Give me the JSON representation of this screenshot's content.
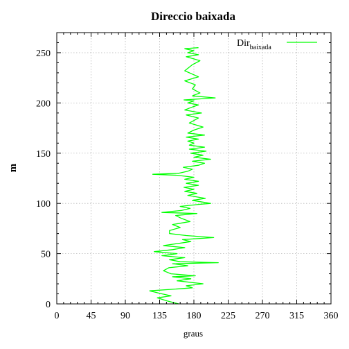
{
  "chart_data": {
    "type": "line",
    "title": "Direccio baixada",
    "xlabel": "graus",
    "ylabel": "m",
    "xlim": [
      0,
      360
    ],
    "ylim": [
      0,
      270
    ],
    "xticks": [
      0,
      45,
      90,
      135,
      180,
      225,
      270,
      315,
      360
    ],
    "yticks": [
      0,
      50,
      100,
      150,
      200,
      250
    ],
    "grid": true,
    "legend_position": "top-right",
    "series": [
      {
        "name": "Dir",
        "name_subscript": "baixada",
        "color": "#00ff00",
        "points": [
          [
            160,
            0
          ],
          [
            145,
            3
          ],
          [
            132,
            6
          ],
          [
            150,
            8
          ],
          [
            138,
            10
          ],
          [
            122,
            13
          ],
          [
            160,
            15
          ],
          [
            178,
            16
          ],
          [
            170,
            18
          ],
          [
            192,
            20
          ],
          [
            158,
            23
          ],
          [
            176,
            25
          ],
          [
            152,
            27
          ],
          [
            182,
            28
          ],
          [
            150,
            30
          ],
          [
            140,
            33
          ],
          [
            147,
            36
          ],
          [
            172,
            38
          ],
          [
            152,
            40
          ],
          [
            212,
            41
          ],
          [
            162,
            42
          ],
          [
            148,
            44
          ],
          [
            168,
            46
          ],
          [
            138,
            48
          ],
          [
            158,
            50
          ],
          [
            128,
            52
          ],
          [
            152,
            54
          ],
          [
            168,
            56
          ],
          [
            140,
            58
          ],
          [
            158,
            60
          ],
          [
            176,
            62
          ],
          [
            165,
            64
          ],
          [
            206,
            66
          ],
          [
            170,
            68
          ],
          [
            148,
            70
          ],
          [
            148,
            73
          ],
          [
            162,
            76
          ],
          [
            152,
            79
          ],
          [
            175,
            82
          ],
          [
            164,
            85
          ],
          [
            156,
            88
          ],
          [
            184,
            90
          ],
          [
            138,
            91
          ],
          [
            164,
            93
          ],
          [
            175,
            95
          ],
          [
            162,
            97
          ],
          [
            186,
            99
          ],
          [
            202,
            100
          ],
          [
            178,
            103
          ],
          [
            195,
            105
          ],
          [
            172,
            108
          ],
          [
            184,
            110
          ],
          [
            168,
            112
          ],
          [
            180,
            114
          ],
          [
            167,
            116
          ],
          [
            186,
            118
          ],
          [
            170,
            120
          ],
          [
            186,
            122
          ],
          [
            168,
            124
          ],
          [
            180,
            126
          ],
          [
            158,
            128
          ],
          [
            126,
            129
          ],
          [
            160,
            130
          ],
          [
            172,
            132
          ],
          [
            178,
            134
          ],
          [
            166,
            136
          ],
          [
            186,
            138
          ],
          [
            194,
            140
          ],
          [
            178,
            142
          ],
          [
            202,
            144
          ],
          [
            180,
            146
          ],
          [
            192,
            148
          ],
          [
            176,
            150
          ],
          [
            196,
            152
          ],
          [
            174,
            154
          ],
          [
            194,
            156
          ],
          [
            174,
            158
          ],
          [
            180,
            160
          ],
          [
            172,
            162
          ],
          [
            186,
            164
          ],
          [
            170,
            166
          ],
          [
            194,
            168
          ],
          [
            172,
            170
          ],
          [
            180,
            173
          ],
          [
            192,
            176
          ],
          [
            174,
            180
          ],
          [
            186,
            185
          ],
          [
            170,
            188
          ],
          [
            190,
            190
          ],
          [
            168,
            193
          ],
          [
            178,
            196
          ],
          [
            186,
            198
          ],
          [
            172,
            200
          ],
          [
            180,
            202
          ],
          [
            167,
            203
          ],
          [
            208,
            205
          ],
          [
            178,
            207
          ],
          [
            188,
            210
          ],
          [
            178,
            214
          ],
          [
            182,
            218
          ],
          [
            168,
            222
          ],
          [
            186,
            226
          ],
          [
            168,
            232
          ],
          [
            178,
            238
          ],
          [
            188,
            242
          ],
          [
            170,
            246
          ],
          [
            186,
            248
          ],
          [
            172,
            250
          ],
          [
            180,
            252
          ],
          [
            168,
            254
          ],
          [
            186,
            255
          ]
        ]
      }
    ]
  }
}
